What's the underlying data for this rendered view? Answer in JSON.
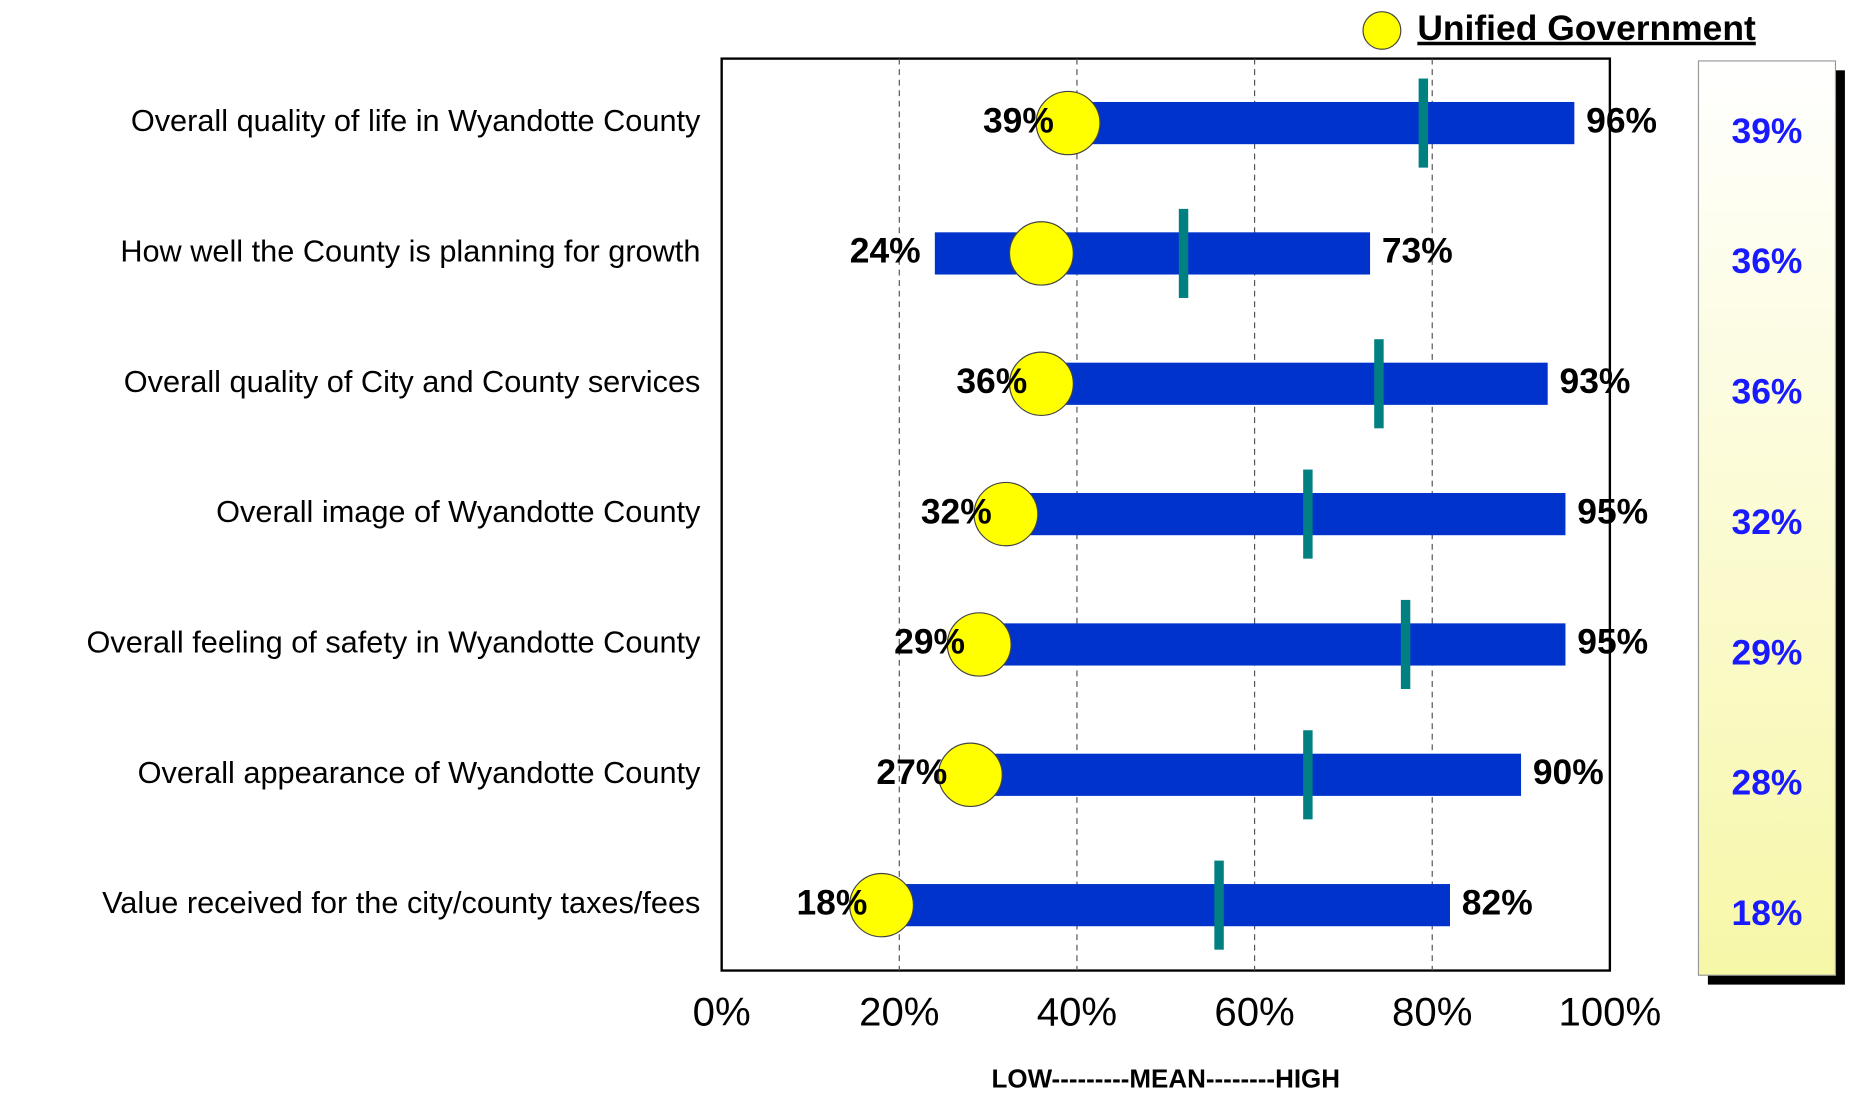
{
  "chart_data": {
    "type": "range",
    "categories": [
      "Overall quality of life in Wyandotte County",
      "How well the County is planning for  growth",
      "Overall quality of City and County services",
      "Overall image of Wyandotte County",
      "Overall feeling of safety in Wyandotte County",
      "Overall appearance of Wyandotte County",
      "Value received for the city/county taxes/fees"
    ],
    "series": [
      {
        "name": "Low",
        "role": "low",
        "color": "#0033cc",
        "values": [
          39,
          24,
          36,
          32,
          29,
          27,
          18
        ],
        "value_labels": [
          "39%",
          "24%",
          "36%",
          "32%",
          "29%",
          "27%",
          "18%"
        ]
      },
      {
        "name": "High",
        "role": "high",
        "color": "#0033cc",
        "values": [
          96,
          73,
          93,
          95,
          95,
          90,
          82
        ],
        "value_labels": [
          "96%",
          "73%",
          "93%",
          "95%",
          "95%",
          "90%",
          "82%"
        ]
      },
      {
        "name": "Mean",
        "role": "mean",
        "color": "#008080",
        "values": [
          79,
          52,
          74,
          66,
          77,
          66,
          56
        ]
      },
      {
        "name": "Unified Government",
        "role": "marker",
        "color": "#ffff00",
        "values": [
          39,
          36,
          36,
          32,
          29,
          28,
          18
        ],
        "value_labels": [
          "39%",
          "36%",
          "36%",
          "32%",
          "29%",
          "28%",
          "18%"
        ]
      }
    ],
    "xlim": [
      0,
      100
    ],
    "xticks": [
      {
        "value": 0,
        "label": "0%"
      },
      {
        "value": 20,
        "label": "20%"
      },
      {
        "value": 40,
        "label": "40%"
      },
      {
        "value": 60,
        "label": "60%"
      },
      {
        "value": 80,
        "label": "80%"
      },
      {
        "value": 100,
        "label": "100%"
      }
    ],
    "x_label": "LOW---------MEAN--------HIGH",
    "grid": true
  }
}
